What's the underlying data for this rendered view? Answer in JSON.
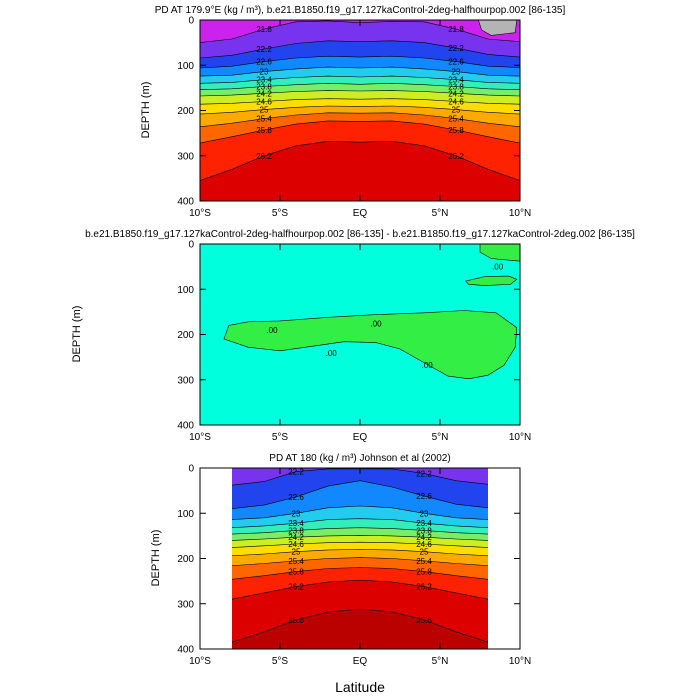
{
  "figure": {
    "xlabel": "Latitude"
  },
  "chart_data": [
    {
      "type": "contour",
      "title": "PD AT 179.9°E (kg / m³), b.e21.B1850.f19_g17.127kaControl-2deg-halfhourpop.002 [86-135]",
      "xlabel": "",
      "ylabel": "DEPTH (m)",
      "xlim": [
        -10,
        10
      ],
      "ylim": [
        400,
        0
      ],
      "x_ticks": [
        "10°S",
        "5°S",
        "EQ",
        "5°N",
        "10°N"
      ],
      "y_ticks": [
        "0",
        "100",
        "200",
        "300",
        "400"
      ],
      "data_extent": [
        -10,
        10
      ],
      "contour_levels": [
        21.8,
        22.2,
        22.6,
        23,
        23.4,
        23.8,
        24.2,
        24.6,
        25,
        25.4,
        25.8,
        26.2
      ],
      "contour_depths": {
        "x": [
          -10,
          -8,
          -6,
          -4,
          -2,
          0,
          2,
          4,
          6,
          8,
          10
        ],
        "lines": [
          {
            "level": 21.8,
            "depth": [
              50,
              42,
              20,
              4,
              2,
              6,
              3,
              4,
              20,
              42,
              48
            ]
          },
          {
            "level": 22.2,
            "depth": [
              84,
              78,
              64,
              52,
              46,
              48,
              46,
              50,
              62,
              76,
              82
            ]
          },
          {
            "level": 22.6,
            "depth": [
              106,
              102,
              92,
              84,
              80,
              82,
              80,
              84,
              92,
              102,
              105
            ]
          },
          {
            "level": 23,
            "depth": [
              124,
              122,
              114,
              108,
              104,
              106,
              104,
              108,
              114,
              122,
              124
            ]
          },
          {
            "level": 23.4,
            "depth": [
              140,
              138,
              132,
              127,
              124,
              126,
              124,
              127,
              132,
              138,
              140
            ]
          },
          {
            "level": 23.8,
            "depth": [
              154,
              152,
              147,
              143,
              140,
              142,
              140,
              143,
              147,
              152,
              154
            ]
          },
          {
            "level": 24.2,
            "depth": [
              168,
              166,
              162,
              158,
              156,
              157,
              156,
              158,
              162,
              166,
              168
            ]
          },
          {
            "level": 24.6,
            "depth": [
              186,
              184,
              180,
              176,
              174,
              175,
              174,
              176,
              180,
              184,
              186
            ]
          },
          {
            "level": 25,
            "depth": [
              208,
              204,
              198,
              193,
              190,
              191,
              190,
              193,
              198,
              204,
              208
            ]
          },
          {
            "level": 25.4,
            "depth": [
              236,
              228,
              218,
              210,
              205,
              206,
              205,
              210,
              218,
              228,
              236
            ]
          },
          {
            "level": 25.8,
            "depth": [
              272,
              258,
              243,
              230,
              223,
              224,
              223,
              230,
              243,
              258,
              272
            ]
          },
          {
            "level": 26.2,
            "depth": [
              355,
              330,
              300,
              278,
              268,
              270,
              268,
              278,
              300,
              330,
              355
            ]
          }
        ]
      },
      "contour_labels": [
        "21.8",
        "22.2",
        "22.6",
        "23",
        "23.4",
        "23.8",
        "24.2",
        "24.6",
        "25",
        "25.4",
        "25.8",
        "26.2"
      ]
    },
    {
      "type": "contour",
      "title": "b.e21.B1850.f19_g17.127kaControl-2deg-halfhourpop.002 [86-135] - b.e21.B1850.f19_g17.127kaControl-2deg.002 [86-135]",
      "xlabel": "",
      "ylabel": "DEPTH (m)",
      "xlim": [
        -10,
        10
      ],
      "ylim": [
        400,
        0
      ],
      "x_ticks": [
        "10°S",
        "5°S",
        "EQ",
        "5°N",
        "10°N"
      ],
      "y_ticks": [
        "0",
        "100",
        "200",
        "300",
        "400"
      ],
      "background_value": "< 0",
      "regions": [
        {
          "name": "main-positive-region",
          "value": ".00",
          "outline": [
            [
              -8.2,
              180
            ],
            [
              -7,
              172
            ],
            [
              -5,
              170
            ],
            [
              -2,
              162
            ],
            [
              1,
              156
            ],
            [
              4,
              152
            ],
            [
              6.5,
              147
            ],
            [
              8.5,
              152
            ],
            [
              9.8,
              185
            ],
            [
              9.7,
              228
            ],
            [
              9,
              268
            ],
            [
              8,
              290
            ],
            [
              6.8,
              298
            ],
            [
              5.5,
              292
            ],
            [
              4,
              262
            ],
            [
              2.5,
              232
            ],
            [
              1,
              218
            ],
            [
              -1,
              216
            ],
            [
              -3,
              226
            ],
            [
              -5,
              236
            ],
            [
              -7,
              228
            ],
            [
              -8.5,
              210
            ]
          ]
        },
        {
          "name": "upper-right-region",
          "value": ".00",
          "outline": [
            [
              7.5,
              0
            ],
            [
              10,
              0
            ],
            [
              10,
              38
            ],
            [
              8.2,
              32
            ],
            [
              7.5,
              18
            ]
          ]
        },
        {
          "name": "small-right-region",
          "value": ".00",
          "outline": [
            [
              6.6,
              82
            ],
            [
              7.8,
              72
            ],
            [
              9.3,
              71
            ],
            [
              9.8,
              78
            ],
            [
              9.4,
              89
            ],
            [
              7.8,
              92
            ],
            [
              6.8,
              89
            ]
          ]
        }
      ],
      "contour_labels": [
        ".00",
        ".00",
        ".00",
        ".00",
        ".00"
      ]
    },
    {
      "type": "contour",
      "title": "PD AT 180 (kg / m³) Johnson et al (2002)",
      "xlabel": "Latitude",
      "ylabel": "DEPTH (m)",
      "xlim": [
        -10,
        10
      ],
      "ylim": [
        400,
        0
      ],
      "x_ticks": [
        "10°S",
        "5°S",
        "EQ",
        "5°N",
        "10°N"
      ],
      "y_ticks": [
        "0",
        "100",
        "200",
        "300",
        "400"
      ],
      "data_extent": [
        -8,
        8
      ],
      "contour_levels": [
        22.2,
        22.6,
        23,
        23.4,
        23.8,
        24.2,
        24.6,
        25,
        25.4,
        25.8,
        26.2,
        26.6
      ],
      "contour_depths": {
        "x": [
          -8,
          -6,
          -4,
          -2,
          0,
          2,
          4,
          6,
          8
        ],
        "lines": [
          {
            "level": 22.2,
            "depth": [
              38,
              30,
              8,
              2,
              2,
              2,
              12,
              28,
              36
            ]
          },
          {
            "level": 22.6,
            "depth": [
              90,
              82,
              64,
              40,
              28,
              42,
              62,
              80,
              88
            ]
          },
          {
            "level": 23,
            "depth": [
              114,
              110,
              100,
              88,
              84,
              88,
              100,
              110,
              114
            ]
          },
          {
            "level": 23.4,
            "depth": [
              132,
              128,
              122,
              114,
              112,
              114,
              122,
              128,
              132
            ]
          },
          {
            "level": 23.8,
            "depth": [
              146,
              143,
              138,
              134,
              132,
              134,
              138,
              143,
              146
            ]
          },
          {
            "level": 24.2,
            "depth": [
              160,
              157,
              153,
              150,
              149,
              150,
              153,
              157,
              160
            ]
          },
          {
            "level": 24.6,
            "depth": [
              176,
              172,
              168,
              165,
              164,
              165,
              168,
              172,
              176
            ]
          },
          {
            "level": 25,
            "depth": [
              194,
              190,
              185,
              181,
              180,
              181,
              185,
              190,
              194
            ]
          },
          {
            "level": 25.4,
            "depth": [
              216,
              211,
              205,
              200,
              198,
              200,
              205,
              211,
              216
            ]
          },
          {
            "level": 25.8,
            "depth": [
              246,
              238,
              229,
              222,
              220,
              222,
              229,
              238,
              246
            ]
          },
          {
            "level": 26.2,
            "depth": [
              290,
              276,
              262,
              252,
              248,
              252,
              262,
              276,
              290
            ]
          },
          {
            "level": 26.6,
            "depth": [
              385,
              362,
              336,
              318,
              312,
              318,
              336,
              362,
              385
            ]
          }
        ]
      },
      "contour_labels": [
        "22.2",
        "22.6",
        "23",
        "23.4",
        "23.8",
        "24.2",
        "24.6",
        "25",
        "25.4",
        "25.8",
        "26.2",
        "26.6"
      ]
    }
  ]
}
